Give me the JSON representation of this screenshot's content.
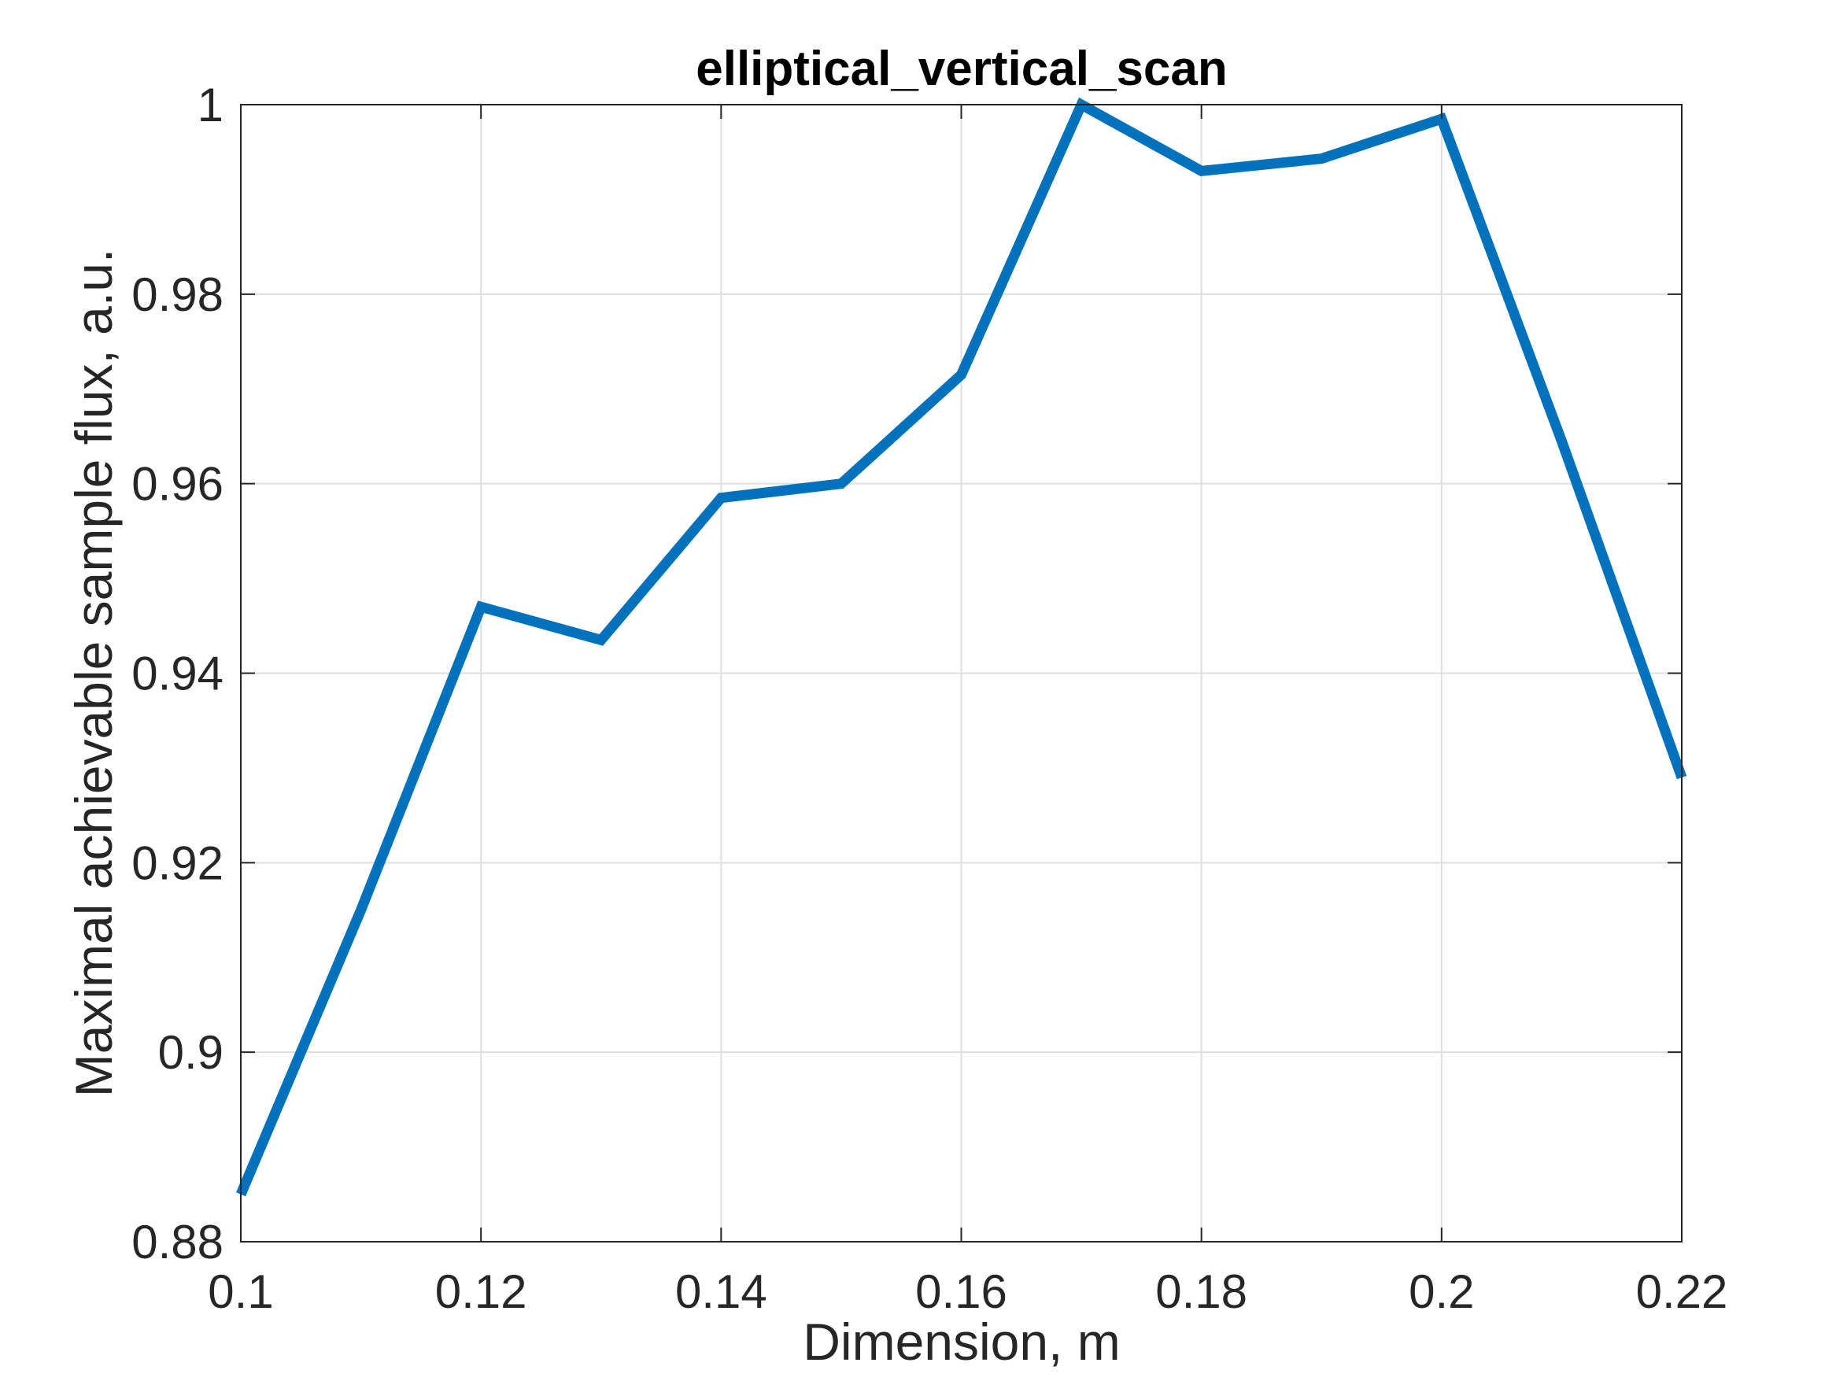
{
  "chart_data": {
    "type": "line",
    "title": "elliptical_vertical_scan",
    "xlabel": "Dimension, m",
    "ylabel": "Maximal achievable sample flux, a.u.",
    "xlim": [
      0.1,
      0.22
    ],
    "ylim": [
      0.88,
      1.0
    ],
    "xticks": [
      0.1,
      0.12,
      0.14,
      0.16,
      0.18,
      0.2,
      0.22
    ],
    "xtick_labels": [
      "0.1",
      "0.12",
      "0.14",
      "0.16",
      "0.18",
      "0.2",
      "0.22"
    ],
    "yticks": [
      0.88,
      0.9,
      0.92,
      0.94,
      0.96,
      0.98,
      1.0
    ],
    "ytick_labels": [
      "0.88",
      "0.9",
      "0.92",
      "0.94",
      "0.96",
      "0.98",
      "1"
    ],
    "grid": true,
    "series": [
      {
        "color": "#0072bd",
        "x": [
          0.1,
          0.11,
          0.12,
          0.13,
          0.14,
          0.15,
          0.16,
          0.17,
          0.18,
          0.19,
          0.2,
          0.21,
          0.22
        ],
        "y": [
          0.885,
          0.915,
          0.947,
          0.9435,
          0.9585,
          0.96,
          0.9715,
          1.0,
          0.993,
          0.9943,
          0.9985,
          0.9645,
          0.929
        ]
      }
    ]
  }
}
